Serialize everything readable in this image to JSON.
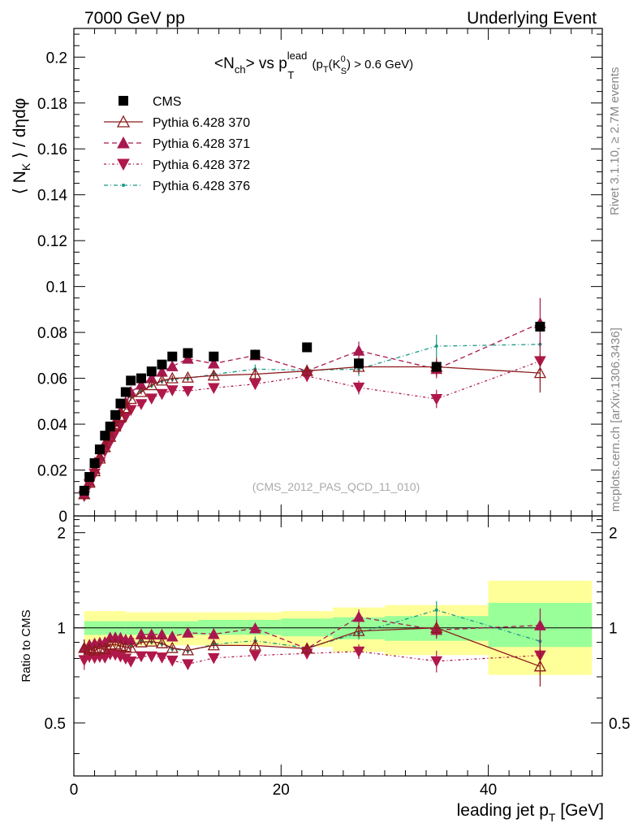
{
  "header": {
    "left": "7000 GeV pp",
    "right": "Underlying Event"
  },
  "side": {
    "rivet": "Rivet 3.1.10, ≥ 2.7M events",
    "mcplots": "mcplots.cern.ch [arXiv:1306.3436]"
  },
  "chart_data": {
    "type": "scatter",
    "title_parts": {
      "a": "<N",
      "a_sub": "ch",
      "b": "> vs p",
      "b_sup": "lead",
      "b_sub": "T",
      "c": " (p",
      "c_sub": "T",
      "d": "(K",
      "d_sup": "0",
      "d_sub": "S",
      "e": ") > 0.6 GeV)"
    },
    "watermark": "(CMS_2012_PAS_QCD_11_010)",
    "ylabel_parts": {
      "a": "⟨ N",
      "a_sub": "K",
      "b": " ⟩ / dηdφ"
    },
    "xlabel_parts": {
      "a": "leading jet p",
      "a_sub": "T",
      "b": " [GeV]"
    },
    "ratio_ylabel": "Ratio to CMS",
    "xlim": [
      0,
      51
    ],
    "ylim": [
      0,
      0.2125
    ],
    "ratio_ylim": [
      0.34,
      2.26
    ],
    "x_ticks": [
      0,
      20,
      40
    ],
    "x_tick_labels": [
      "0",
      "20",
      "40"
    ],
    "y_ticks": [
      0,
      0.02,
      0.04,
      0.06,
      0.08,
      0.1,
      0.12,
      0.14,
      0.16,
      0.18,
      0.2
    ],
    "y_tick_labels": [
      "0",
      "0.02",
      "0.04",
      "0.06",
      "0.08",
      "0.1",
      "0.12",
      "0.14",
      "0.16",
      "0.18",
      "0.2"
    ],
    "ratio_ticks": [
      0.5,
      1,
      2
    ],
    "ratio_tick_labels": [
      "0.5",
      "1",
      "2"
    ],
    "bands": [
      {
        "x0": 1,
        "x1": 5,
        "y0": 0.95,
        "y1": 1.05,
        "z0": 0.87,
        "z1": 1.13
      },
      {
        "x0": 5,
        "x1": 12,
        "y0": 0.95,
        "y1": 1.05,
        "z0": 0.88,
        "z1": 1.12
      },
      {
        "x0": 12,
        "x1": 20,
        "y0": 0.95,
        "y1": 1.06,
        "z0": 0.88,
        "z1": 1.12
      },
      {
        "x0": 20,
        "x1": 25,
        "y0": 0.94,
        "y1": 1.07,
        "z0": 0.87,
        "z1": 1.13
      },
      {
        "x0": 25,
        "x1": 30,
        "y0": 0.92,
        "y1": 1.08,
        "z0": 0.84,
        "z1": 1.16
      },
      {
        "x0": 30,
        "x1": 40,
        "y0": 0.91,
        "y1": 1.09,
        "z0": 0.82,
        "z1": 1.18
      },
      {
        "x0": 40,
        "x1": 50,
        "y0": 0.87,
        "y1": 1.2,
        "z0": 0.71,
        "z1": 1.41
      }
    ],
    "x": [
      1.0,
      1.5,
      2.0,
      2.5,
      3.0,
      3.5,
      4.0,
      4.5,
      5.0,
      5.5,
      6.5,
      7.5,
      8.5,
      9.5,
      11.0,
      13.5,
      17.5,
      22.5,
      27.5,
      35.0,
      45.0
    ],
    "series": [
      {
        "name": "CMS",
        "marker": "square",
        "color": "#000000",
        "dash": "none",
        "values": [
          0.011,
          0.017,
          0.023,
          0.029,
          0.035,
          0.039,
          0.044,
          0.049,
          0.054,
          0.059,
          0.06,
          0.063,
          0.066,
          0.0695,
          0.071,
          0.0695,
          0.0703,
          0.0735,
          0.0665,
          0.065,
          0.0825
        ],
        "errors": [
          0,
          0,
          0,
          0,
          0,
          0,
          0,
          0,
          0,
          0,
          0,
          0,
          0,
          0,
          0,
          0,
          0,
          0,
          0,
          0,
          0
        ]
      },
      {
        "name": "Pythia 6.428 370",
        "marker": "triangle-up-open",
        "color": "#8b1a1a",
        "dash": "none",
        "values": [
          0.0095,
          0.0145,
          0.0195,
          0.025,
          0.03,
          0.0345,
          0.039,
          0.043,
          0.047,
          0.051,
          0.054,
          0.057,
          0.059,
          0.06,
          0.0603,
          0.0612,
          0.0618,
          0.0632,
          0.065,
          0.065,
          0.0623
        ],
        "errors": [
          0.0006,
          0.0006,
          0.0006,
          0.0006,
          0.0006,
          0.0006,
          0.0006,
          0.0007,
          0.0007,
          0.0008,
          0.001,
          0.001,
          0.0012,
          0.0012,
          0.0013,
          0.0015,
          0.002,
          0.0025,
          0.003,
          0.004,
          0.0085
        ]
      },
      {
        "name": "Pythia 6.428 371",
        "marker": "triangle-up",
        "color": "#a8184e",
        "dash": "6,4",
        "values": [
          0.0095,
          0.015,
          0.0205,
          0.026,
          0.0315,
          0.0363,
          0.041,
          0.0455,
          0.0495,
          0.054,
          0.0572,
          0.06,
          0.0628,
          0.0652,
          0.0685,
          0.0664,
          0.07,
          0.0632,
          0.072,
          0.064,
          0.084
        ],
        "errors": [
          0.0006,
          0.0006,
          0.0006,
          0.0006,
          0.0006,
          0.0006,
          0.0006,
          0.0007,
          0.0007,
          0.0008,
          0.001,
          0.001,
          0.0012,
          0.0012,
          0.0013,
          0.0015,
          0.002,
          0.0025,
          0.004,
          0.004,
          0.011
        ]
      },
      {
        "name": "Pythia 6.428 372",
        "marker": "triangle-down",
        "color": "#b0184a",
        "dash": "3,3,1,3",
        "values": [
          0.0087,
          0.0138,
          0.0185,
          0.0235,
          0.0282,
          0.0322,
          0.0362,
          0.0398,
          0.0432,
          0.0462,
          0.0488,
          0.0512,
          0.0532,
          0.0548,
          0.0545,
          0.0558,
          0.0575,
          0.061,
          0.056,
          0.051,
          0.0675
        ],
        "errors": [
          0.0006,
          0.0006,
          0.0006,
          0.0006,
          0.0006,
          0.0006,
          0.0006,
          0.0007,
          0.0007,
          0.0008,
          0.001,
          0.001,
          0.0012,
          0.0012,
          0.0013,
          0.0015,
          0.002,
          0.0025,
          0.003,
          0.004,
          0.009
        ]
      },
      {
        "name": "Pythia 6.428 376",
        "marker": "dot",
        "color": "#1a9985",
        "dash": "5,3,1,3",
        "values": [
          0.0095,
          0.015,
          0.0203,
          0.0258,
          0.031,
          0.0355,
          0.04,
          0.0442,
          0.048,
          0.052,
          0.0545,
          0.0568,
          0.0587,
          0.0596,
          0.06,
          0.0617,
          0.064,
          0.0635,
          0.064,
          0.074,
          0.0748
        ],
        "errors": [
          0.0006,
          0.0006,
          0.0006,
          0.0006,
          0.0006,
          0.0006,
          0.0006,
          0.0007,
          0.0007,
          0.0008,
          0.001,
          0.001,
          0.0012,
          0.0012,
          0.0013,
          0.0015,
          0.002,
          0.0025,
          0.003,
          0.005,
          0.009
        ]
      }
    ]
  }
}
